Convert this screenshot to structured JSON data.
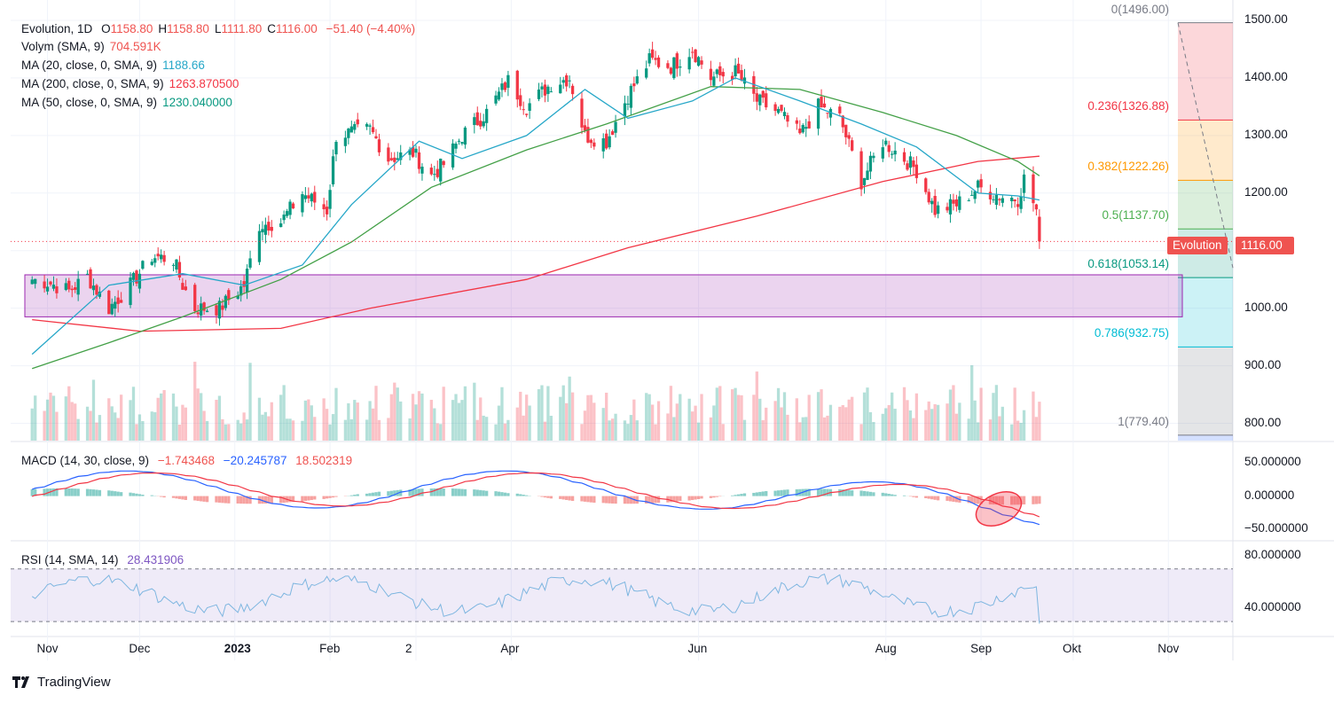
{
  "header": {
    "symbol_line": "Evolution, 1D",
    "ohlc": [
      {
        "k": "O",
        "v": "1158.80"
      },
      {
        "k": "H",
        "v": "1158.80"
      },
      {
        "k": "L",
        "v": "1111.80"
      },
      {
        "k": "C",
        "v": "1116.00"
      }
    ],
    "change": "−51.40 (−4.40%)"
  },
  "indicators": [
    {
      "name": "Volym (SMA, 9)",
      "value": "704.591K",
      "color": "#ef5350"
    },
    {
      "name": "MA (20, close, 0, SMA, 9)",
      "value": "1188.66",
      "color": "#26a7c8"
    },
    {
      "name": "MA (200, close, 0, SMA, 9)",
      "value": "1263.870500",
      "color": "#f23645"
    },
    {
      "name": "MA (50, close, 0, SMA, 9)",
      "value": "1230.040000",
      "color": "#089981"
    }
  ],
  "macd": {
    "label": "MACD (14, 30, close, 9)",
    "v1": "−1.743468",
    "v2": "−20.245787",
    "v3": "18.502319"
  },
  "rsi": {
    "label": "RSI (14, SMA, 14)",
    "value": "28.431906"
  },
  "price_tag": {
    "name": "Evolution",
    "value": "1116.00"
  },
  "fib": [
    {
      "label": "0(1496.00)",
      "color": "#787b86"
    },
    {
      "label": "0.236(1326.88)",
      "color": "#f23645"
    },
    {
      "label": "0.382(1222.26)",
      "color": "#ff9800"
    },
    {
      "label": "0.5(1137.70)",
      "color": "#4caf50"
    },
    {
      "label": "0.618(1053.14)",
      "color": "#089981"
    },
    {
      "label": "0.786(932.75)",
      "color": "#00bcd4"
    },
    {
      "label": "1(779.40)",
      "color": "#787b86"
    }
  ],
  "y_axis_price": [
    "1500.00",
    "1400.00",
    "1300.00",
    "1200.00",
    "1100.00",
    "1000.00",
    "900.00",
    "800.00"
  ],
  "y_axis_macd": [
    "50.000000",
    "0.000000",
    "−50.000000"
  ],
  "y_axis_rsi": [
    "80.000000",
    "40.000000"
  ],
  "x_axis": [
    "Nov",
    "Dec",
    "2023",
    "Feb",
    "2",
    "Apr",
    "Jun",
    "Aug",
    "Sep",
    "Okt",
    "Nov"
  ],
  "brand": "TradingView",
  "chart_data": {
    "type": "candlestick",
    "series_name": "Evolution",
    "timeframe": "1D",
    "price_range": [
      770,
      1520
    ],
    "last_close": 1116.0,
    "close_path": [
      [
        "2022-10-27",
        1050
      ],
      [
        "2022-11-01",
        1045
      ],
      [
        "2022-11-08",
        1030
      ],
      [
        "2022-11-14",
        1055
      ],
      [
        "2022-11-21",
        1000
      ],
      [
        "2022-11-28",
        1040
      ],
      [
        "2022-12-05",
        1090
      ],
      [
        "2022-12-12",
        1085
      ],
      [
        "2022-12-15",
        1040
      ],
      [
        "2022-12-19",
        1000
      ],
      [
        "2022-12-27",
        1000
      ],
      [
        "2023-01-04",
        1040
      ],
      [
        "2023-01-09",
        1145
      ],
      [
        "2023-01-16",
        1150
      ],
      [
        "2023-01-23",
        1200
      ],
      [
        "2023-01-31",
        1170
      ],
      [
        "2023-02-03",
        1300
      ],
      [
        "2023-02-08",
        1305
      ],
      [
        "2023-02-14",
        1310
      ],
      [
        "2023-02-20",
        1260
      ],
      [
        "2023-02-28",
        1270
      ],
      [
        "2023-03-06",
        1230
      ],
      [
        "2023-03-10",
        1250
      ],
      [
        "2023-03-16",
        1300
      ],
      [
        "2023-03-24",
        1340
      ],
      [
        "2023-03-31",
        1395
      ],
      [
        "2023-04-06",
        1350
      ],
      [
        "2023-04-14",
        1390
      ],
      [
        "2023-04-20",
        1400
      ],
      [
        "2023-04-25",
        1300
      ],
      [
        "2023-05-02",
        1290
      ],
      [
        "2023-05-09",
        1370
      ],
      [
        "2023-05-16",
        1430
      ],
      [
        "2023-05-23",
        1420
      ],
      [
        "2023-05-30",
        1450
      ],
      [
        "2023-06-05",
        1400
      ],
      [
        "2023-06-13",
        1410
      ],
      [
        "2023-06-20",
        1360
      ],
      [
        "2023-06-27",
        1340
      ],
      [
        "2023-07-04",
        1300
      ],
      [
        "2023-07-10",
        1350
      ],
      [
        "2023-07-17",
        1330
      ],
      [
        "2023-07-24",
        1220
      ],
      [
        "2023-07-31",
        1290
      ],
      [
        "2023-08-07",
        1260
      ],
      [
        "2023-08-11",
        1240
      ],
      [
        "2023-08-17",
        1170
      ],
      [
        "2023-08-24",
        1180
      ],
      [
        "2023-08-31",
        1210
      ],
      [
        "2023-09-07",
        1195
      ],
      [
        "2023-09-13",
        1190
      ],
      [
        "2023-09-15",
        1225
      ],
      [
        "2023-09-19",
        1170
      ],
      [
        "2023-09-20",
        1116
      ]
    ],
    "ma20_path": [
      [
        "2022-10-27",
        920
      ],
      [
        "2022-11-21",
        1040
      ],
      [
        "2022-12-15",
        1060
      ],
      [
        "2023-01-04",
        1040
      ],
      [
        "2023-01-23",
        1075
      ],
      [
        "2023-02-08",
        1180
      ],
      [
        "2023-03-02",
        1290
      ],
      [
        "2023-03-16",
        1260
      ],
      [
        "2023-04-06",
        1300
      ],
      [
        "2023-04-25",
        1380
      ],
      [
        "2023-05-09",
        1330
      ],
      [
        "2023-05-30",
        1360
      ],
      [
        "2023-06-13",
        1400
      ],
      [
        "2023-07-04",
        1360
      ],
      [
        "2023-07-24",
        1320
      ],
      [
        "2023-08-11",
        1280
      ],
      [
        "2023-08-31",
        1200
      ],
      [
        "2023-09-13",
        1195
      ],
      [
        "2023-09-20",
        1188
      ]
    ],
    "ma50_path": [
      [
        "2022-10-27",
        895
      ],
      [
        "2022-11-21",
        940
      ],
      [
        "2022-12-15",
        985
      ],
      [
        "2023-01-16",
        1050
      ],
      [
        "2023-02-08",
        1115
      ],
      [
        "2023-03-06",
        1210
      ],
      [
        "2023-04-06",
        1275
      ],
      [
        "2023-05-02",
        1320
      ],
      [
        "2023-06-05",
        1385
      ],
      [
        "2023-07-04",
        1380
      ],
      [
        "2023-07-31",
        1340
      ],
      [
        "2023-08-24",
        1300
      ],
      [
        "2023-09-13",
        1255
      ],
      [
        "2023-09-20",
        1230
      ]
    ],
    "ma200_path": [
      [
        "2022-10-27",
        980
      ],
      [
        "2022-12-01",
        960
      ],
      [
        "2023-01-16",
        965
      ],
      [
        "2023-02-14",
        1000
      ],
      [
        "2023-04-06",
        1050
      ],
      [
        "2023-05-09",
        1105
      ],
      [
        "2023-06-20",
        1160
      ],
      [
        "2023-07-31",
        1220
      ],
      [
        "2023-08-31",
        1255
      ],
      [
        "2023-09-20",
        1264
      ]
    ],
    "fib_levels": [
      {
        "ratio": "0",
        "price": 1496.0
      },
      {
        "ratio": "0.236",
        "price": 1326.88
      },
      {
        "ratio": "0.382",
        "price": 1222.26
      },
      {
        "ratio": "0.5",
        "price": 1137.7
      },
      {
        "ratio": "0.618",
        "price": 1053.14
      },
      {
        "ratio": "0.786",
        "price": 932.75
      },
      {
        "ratio": "1",
        "price": 779.4
      }
    ],
    "support_zone": {
      "from": 985,
      "to": 1058
    },
    "macd_range": [
      -65,
      80
    ],
    "rsi_range": [
      20,
      90
    ],
    "rsi_bands": [
      70,
      30
    ]
  }
}
